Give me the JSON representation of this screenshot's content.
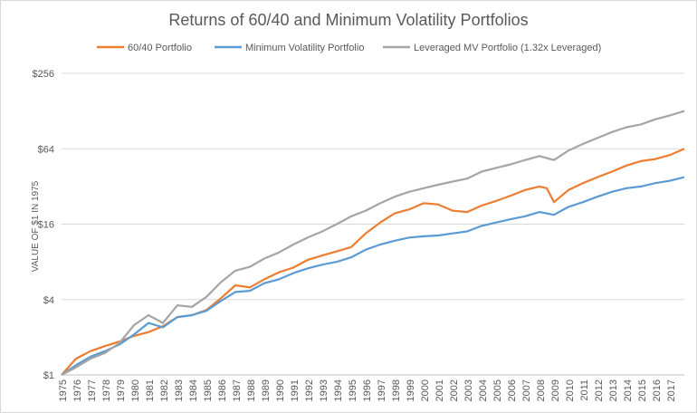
{
  "chart_data": {
    "type": "line",
    "title": "Returns of 60/40 and Minimum Volatility Portfolios",
    "xlabel": "",
    "ylabel": "VALUE OF $1 IN 1975",
    "yscale": "log2",
    "ylim": [
      1,
      256
    ],
    "yticks": [
      1,
      4,
      16,
      64,
      256
    ],
    "ytick_labels": [
      "$1",
      "$4",
      "$16",
      "$64",
      "$256"
    ],
    "xlim": [
      1975,
      2018
    ],
    "xtick_labels": [
      "1975",
      "1976",
      "1977",
      "1978",
      "1979",
      "1980",
      "1981",
      "1982",
      "1983",
      "1984",
      "1985",
      "1986",
      "1987",
      "1988",
      "1989",
      "1990",
      "1991",
      "1992",
      "1993",
      "1994",
      "1995",
      "1996",
      "1997",
      "1998",
      "1999",
      "2000",
      "2001",
      "2002",
      "2003",
      "2004",
      "2005",
      "2006",
      "2007",
      "2008",
      "2009",
      "2010",
      "2011",
      "2012",
      "2013",
      "2014",
      "2015",
      "2016",
      "2017"
    ],
    "grid": "horizontal",
    "legend_position": "top",
    "series": [
      {
        "name": "60/40 Portfolio",
        "color": "#ed7d31",
        "x": [
          1975,
          1976,
          1977,
          1978,
          1979,
          1980,
          1981,
          1982,
          1983,
          1984,
          1985,
          1986,
          1987,
          1988,
          1989,
          1990,
          1991,
          1992,
          1993,
          1994,
          1995,
          1996,
          1997,
          1998,
          1999,
          2000,
          2001,
          2002,
          2003,
          2004,
          2005,
          2006,
          2007,
          2008,
          2008.5,
          2009,
          2010,
          2011,
          2012,
          2013,
          2014,
          2015,
          2016,
          2017,
          2018
        ],
        "y": [
          1.0,
          1.35,
          1.55,
          1.7,
          1.85,
          2.05,
          2.2,
          2.45,
          2.9,
          3.0,
          3.3,
          4.1,
          5.2,
          5.0,
          5.8,
          6.6,
          7.2,
          8.3,
          9.0,
          9.7,
          10.5,
          13.5,
          16.5,
          19.5,
          21.0,
          23.5,
          23.0,
          20.5,
          20.0,
          22.5,
          24.5,
          27.0,
          30.0,
          32.0,
          31.0,
          24.0,
          30.0,
          34.0,
          38.0,
          42.0,
          47.0,
          51.0,
          53.0,
          57.0,
          64.0
        ]
      },
      {
        "name": "Minimum Volatility Portfolio",
        "color": "#5b9bd5",
        "x": [
          1975,
          1976,
          1977,
          1978,
          1979,
          1980,
          1981,
          1982,
          1983,
          1984,
          1985,
          1986,
          1987,
          1988,
          1989,
          1990,
          1991,
          1992,
          1993,
          1994,
          1995,
          1996,
          1997,
          1998,
          1999,
          2000,
          2001,
          2002,
          2003,
          2004,
          2005,
          2006,
          2007,
          2008,
          2009,
          2010,
          2011,
          2012,
          2013,
          2014,
          2015,
          2016,
          2017,
          2018
        ],
        "y": [
          1.0,
          1.2,
          1.4,
          1.55,
          1.75,
          2.1,
          2.6,
          2.4,
          2.9,
          3.0,
          3.25,
          3.9,
          4.6,
          4.7,
          5.4,
          5.8,
          6.5,
          7.1,
          7.6,
          8.0,
          8.7,
          10.0,
          11.0,
          11.8,
          12.5,
          12.8,
          13.0,
          13.5,
          14.0,
          15.5,
          16.5,
          17.5,
          18.5,
          20.0,
          19.0,
          22.0,
          24.0,
          26.5,
          29.0,
          31.0,
          32.0,
          34.0,
          35.5,
          38.0
        ]
      },
      {
        "name": "Leveraged MV Portfolio (1.32x Leveraged)",
        "color": "#a5a5a5",
        "x": [
          1975,
          1976,
          1977,
          1978,
          1979,
          1980,
          1981,
          1982,
          1983,
          1984,
          1985,
          1986,
          1987,
          1988,
          1989,
          1990,
          1991,
          1992,
          1993,
          1994,
          1995,
          1996,
          1997,
          1998,
          1999,
          2000,
          2001,
          2002,
          2003,
          2004,
          2005,
          2006,
          2007,
          2008,
          2009,
          2010,
          2011,
          2012,
          2013,
          2014,
          2015,
          2016,
          2017,
          2018
        ],
        "y": [
          1.0,
          1.15,
          1.35,
          1.5,
          1.8,
          2.5,
          3.0,
          2.6,
          3.6,
          3.5,
          4.2,
          5.5,
          6.8,
          7.3,
          8.5,
          9.5,
          11.0,
          12.5,
          14.0,
          16.0,
          18.5,
          20.5,
          23.5,
          26.5,
          29.0,
          31.0,
          33.0,
          35.0,
          37.0,
          42.0,
          45.0,
          48.0,
          52.0,
          56.0,
          52.0,
          62.0,
          70.0,
          78.0,
          87.0,
          95.0,
          100.0,
          110.0,
          118.0,
          128.0
        ]
      }
    ]
  }
}
